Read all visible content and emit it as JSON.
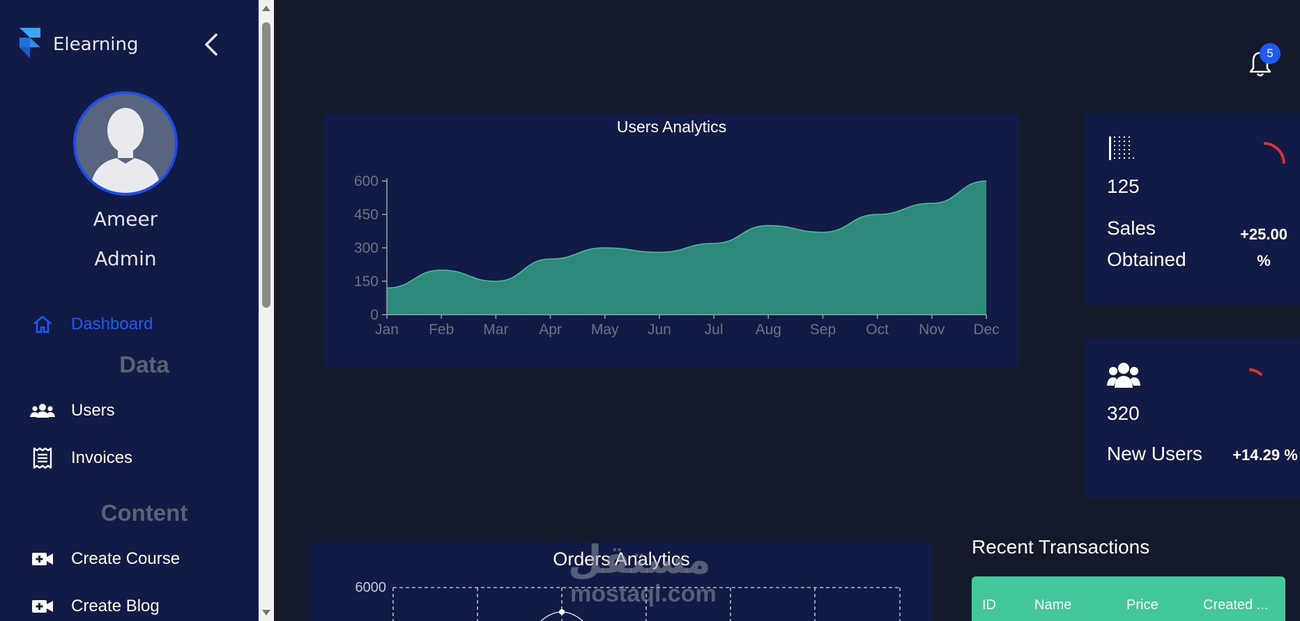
{
  "brand": {
    "name": "Elearning"
  },
  "user": {
    "name": "Ameer",
    "role": "Admin"
  },
  "nav": {
    "dashboard": "Dashboard",
    "section_data": "Data",
    "users": "Users",
    "invoices": "Invoices",
    "section_content": "Content",
    "create_course": "Create Course",
    "create_blog": "Create Blog"
  },
  "notifications": {
    "count": "5"
  },
  "users_chart": {
    "chart_data": {
      "type": "area",
      "title": "Users Analytics",
      "categories": [
        "Jan",
        "Feb",
        "Mar",
        "Apr",
        "May",
        "Jun",
        "Jul",
        "Aug",
        "Sep",
        "Oct",
        "Nov",
        "Dec"
      ],
      "values": [
        120,
        200,
        150,
        250,
        300,
        280,
        320,
        400,
        370,
        450,
        500,
        600
      ],
      "yticks": [
        0,
        150,
        300,
        450,
        600
      ],
      "ylim": [
        0,
        600
      ],
      "colors": {
        "fill": "#2e897a",
        "line": "#4bbfa0"
      }
    }
  },
  "orders_chart": {
    "chart_data": {
      "type": "line",
      "title": "Orders Analytics",
      "yticks": [
        6000
      ]
    }
  },
  "stats": {
    "sales": {
      "value": "125",
      "label_line1": "Sales",
      "label_line2": "Obtained",
      "change_line1": "+25.00",
      "change_line2": "%",
      "icon": "barcode-icon"
    },
    "new_users": {
      "value": "320",
      "label": "New Users",
      "change": "+14.29 %",
      "icon": "users-icon"
    }
  },
  "transactions": {
    "title": "Recent Transactions",
    "columns": [
      "ID",
      "Name",
      "Price",
      "Created ..."
    ]
  },
  "watermark": {
    "arabic": "مستقل",
    "latin": "mostaql.com"
  },
  "colors": {
    "accent": "#1f5bf0",
    "sidebar": "#111b45",
    "background": "#131a2b",
    "table_header": "#44c79a",
    "progress": "#d83434"
  }
}
